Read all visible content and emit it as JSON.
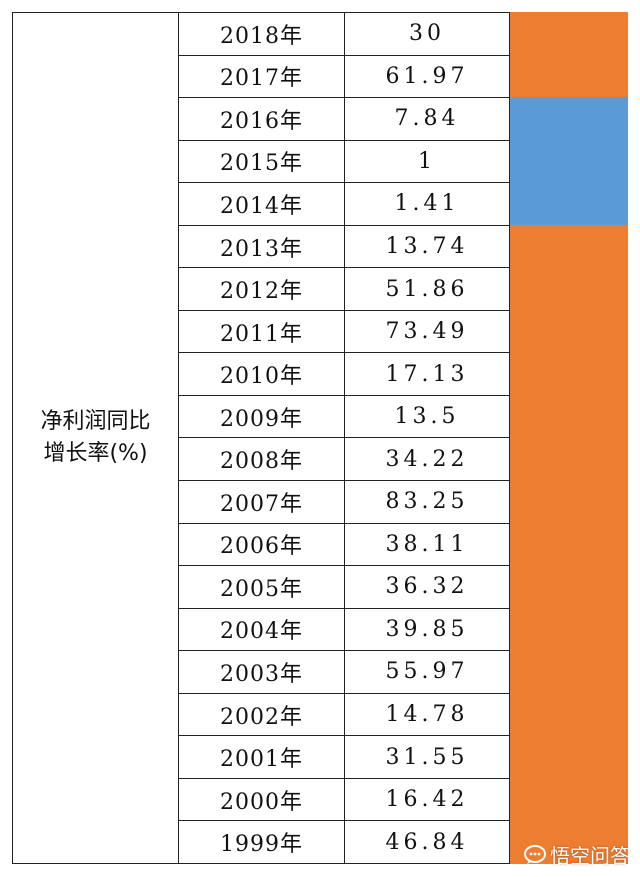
{
  "label": {
    "line1": "净利润同比",
    "line2": "增长率(%)"
  },
  "rows": [
    {
      "year": "2018年",
      "value": "30"
    },
    {
      "year": "2017年",
      "value": "61.97"
    },
    {
      "year": "2016年",
      "value": "7.84"
    },
    {
      "year": "2015年",
      "value": "1"
    },
    {
      "year": "2014年",
      "value": "1.41"
    },
    {
      "year": "2013年",
      "value": "13.74"
    },
    {
      "year": "2012年",
      "value": "51.86"
    },
    {
      "year": "2011年",
      "value": "73.49"
    },
    {
      "year": "2010年",
      "value": "17.13"
    },
    {
      "year": "2009年",
      "value": "13.5"
    },
    {
      "year": "2008年",
      "value": "34.22"
    },
    {
      "year": "2007年",
      "value": "83.25"
    },
    {
      "year": "2006年",
      "value": "38.11"
    },
    {
      "year": "2005年",
      "value": "36.32"
    },
    {
      "year": "2004年",
      "value": "39.85"
    },
    {
      "year": "2003年",
      "value": "55.97"
    },
    {
      "year": "2002年",
      "value": "14.78"
    },
    {
      "year": "2001年",
      "value": "31.55"
    },
    {
      "year": "2000年",
      "value": "16.42"
    },
    {
      "year": "1999年",
      "value": "46.84"
    }
  ],
  "highlight": {
    "colors": {
      "high": "#ed7d31",
      "low": "#5b9bd5"
    },
    "row_categories": [
      "high",
      "high",
      "low",
      "low",
      "low",
      "high",
      "high",
      "high",
      "high",
      "high",
      "high",
      "high",
      "high",
      "high",
      "high",
      "high",
      "high",
      "high",
      "high",
      "high"
    ]
  },
  "watermark": {
    "text": "悟空问答",
    "icon": "chat-bubble-icon"
  }
}
